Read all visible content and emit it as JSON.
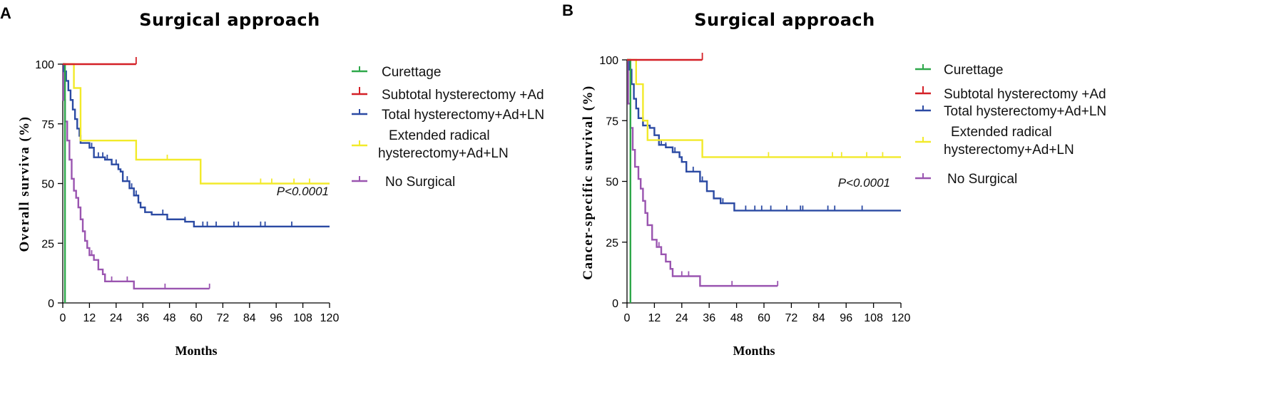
{
  "colors": {
    "curettage": "#2ea84a",
    "subtotal": "#d42027",
    "total": "#2b4aa3",
    "extended": "#f2ea2a",
    "none": "#9a55b0"
  },
  "chart_data": [
    {
      "type": "line",
      "panel": "A",
      "title": "Surgical approach",
      "xlabel": "Months",
      "ylabel": "Overall surviva  (%)",
      "xlim": [
        0,
        120
      ],
      "ylim": [
        0,
        100
      ],
      "xticks": [
        "0",
        "12",
        "24",
        "36",
        "48",
        "60",
        "72",
        "84",
        "96",
        "108",
        "120"
      ],
      "yticks": [
        "0",
        "25",
        "50",
        "75",
        "100"
      ],
      "pvalue": "P<0.0001",
      "series": [
        {
          "key": "curettage",
          "name": "Curettage",
          "steps": [
            [
              0,
              100
            ],
            [
              1,
              100
            ],
            [
              1,
              0
            ]
          ],
          "censor": []
        },
        {
          "key": "subtotal",
          "name": "Subtotal hysterectomy +Ad",
          "steps": [
            [
              0,
              100
            ],
            [
              33,
              100
            ]
          ],
          "censor": [
            33
          ]
        },
        {
          "key": "total",
          "name": "Total hysterectomy+Ad+LN",
          "steps": [
            [
              0,
              100
            ],
            [
              0.5,
              97
            ],
            [
              1.5,
              93
            ],
            [
              2.5,
              89
            ],
            [
              3.5,
              85
            ],
            [
              4.5,
              81
            ],
            [
              5.5,
              77
            ],
            [
              6.5,
              73
            ],
            [
              7.5,
              70
            ],
            [
              8,
              67
            ],
            [
              12,
              65
            ],
            [
              14,
              61
            ],
            [
              19,
              60
            ],
            [
              22,
              58
            ],
            [
              25,
              56
            ],
            [
              26,
              55
            ],
            [
              27,
              51
            ],
            [
              30,
              48
            ],
            [
              32,
              45
            ],
            [
              34,
              42
            ],
            [
              35,
              40
            ],
            [
              37,
              38
            ],
            [
              40,
              37
            ],
            [
              47,
              35
            ],
            [
              55,
              34
            ],
            [
              59,
              32
            ],
            [
              120,
              32
            ]
          ],
          "censor": [
            13,
            16,
            18,
            20,
            24,
            29,
            31,
            33,
            45,
            55,
            63,
            65,
            69,
            77,
            79,
            89,
            91,
            103
          ]
        },
        {
          "key": "extended",
          "name": "Extended radical hysterectomy+Ad+LN",
          "steps": [
            [
              0,
              100
            ],
            [
              5,
              90
            ],
            [
              8,
              68
            ],
            [
              23,
              68
            ],
            [
              33,
              60
            ],
            [
              47,
              60
            ],
            [
              62,
              50
            ],
            [
              120,
              50
            ]
          ],
          "censor": [
            33,
            47,
            62,
            89,
            94,
            104,
            111
          ]
        },
        {
          "key": "none",
          "name": "No Surgical",
          "steps": [
            [
              0,
              100
            ],
            [
              0.3,
              85
            ],
            [
              1,
              76
            ],
            [
              2,
              68
            ],
            [
              3,
              60
            ],
            [
              4,
              52
            ],
            [
              5,
              47
            ],
            [
              6,
              44
            ],
            [
              7,
              40
            ],
            [
              8,
              35
            ],
            [
              9,
              30
            ],
            [
              10,
              26
            ],
            [
              11,
              23
            ],
            [
              12,
              20
            ],
            [
              14,
              18
            ],
            [
              16,
              14
            ],
            [
              18,
              12
            ],
            [
              19,
              9
            ],
            [
              30,
              9
            ],
            [
              32,
              6
            ],
            [
              66,
              6
            ]
          ],
          "censor": [
            7,
            9,
            11,
            13,
            16,
            18,
            22,
            29,
            46,
            66
          ]
        }
      ]
    },
    {
      "type": "line",
      "panel": "B",
      "title": "Surgical approach",
      "xlabel": "Months",
      "ylabel": "Cancer-specific survival (%)",
      "xlim": [
        0,
        120
      ],
      "ylim": [
        0,
        100
      ],
      "xticks": [
        "0",
        "12",
        "24",
        "36",
        "48",
        "60",
        "72",
        "84",
        "96",
        "108",
        "120"
      ],
      "yticks": [
        "0",
        "25",
        "50",
        "75",
        "100"
      ],
      "pvalue": "P<0.0001",
      "series": [
        {
          "key": "curettage",
          "name": "Curettage",
          "steps": [
            [
              0,
              100
            ],
            [
              1.5,
              100
            ],
            [
              1.5,
              0
            ]
          ],
          "censor": []
        },
        {
          "key": "subtotal",
          "name": "Subtotal hysterectomy +Ad",
          "steps": [
            [
              0,
              100
            ],
            [
              33,
              100
            ]
          ],
          "censor": [
            33
          ]
        },
        {
          "key": "total",
          "name": "Total hysterectomy+Ad+LN",
          "steps": [
            [
              0,
              100
            ],
            [
              1,
              96
            ],
            [
              2,
              90
            ],
            [
              3,
              84
            ],
            [
              4,
              80
            ],
            [
              5,
              76
            ],
            [
              7,
              73
            ],
            [
              10,
              72
            ],
            [
              12,
              69
            ],
            [
              14,
              65
            ],
            [
              17,
              64
            ],
            [
              20,
              62
            ],
            [
              23,
              60
            ],
            [
              24,
              58
            ],
            [
              26,
              54
            ],
            [
              30,
              54
            ],
            [
              32,
              50
            ],
            [
              35,
              46
            ],
            [
              38,
              43
            ],
            [
              41,
              41
            ],
            [
              44,
              41
            ],
            [
              47,
              38
            ],
            [
              120,
              38
            ]
          ],
          "censor": [
            15,
            17,
            21,
            29,
            33,
            42,
            52,
            56,
            59,
            63,
            70,
            76,
            77,
            88,
            91,
            103
          ]
        },
        {
          "key": "extended",
          "name": "Extended radical hysterectomy+Ad+LN",
          "steps": [
            [
              0,
              100
            ],
            [
              4,
              90
            ],
            [
              7,
              75
            ],
            [
              9,
              67
            ],
            [
              23,
              67
            ],
            [
              33,
              60
            ],
            [
              120,
              60
            ]
          ],
          "censor": [
            33,
            62,
            90,
            94,
            105,
            112
          ]
        },
        {
          "key": "none",
          "name": "No Surgical",
          "steps": [
            [
              0,
              100
            ],
            [
              0.5,
              82
            ],
            [
              1.5,
              72
            ],
            [
              2.5,
              63
            ],
            [
              3.5,
              56
            ],
            [
              5,
              51
            ],
            [
              6,
              47
            ],
            [
              7,
              42
            ],
            [
              8,
              37
            ],
            [
              9,
              32
            ],
            [
              11,
              26
            ],
            [
              13,
              23
            ],
            [
              15,
              20
            ],
            [
              17,
              17
            ],
            [
              19,
              14
            ],
            [
              20,
              11
            ],
            [
              31,
              11
            ],
            [
              32,
              7
            ],
            [
              66,
              7
            ]
          ],
          "censor": [
            7,
            9,
            11,
            14,
            17,
            20,
            24,
            27,
            46,
            66
          ]
        }
      ]
    }
  ]
}
